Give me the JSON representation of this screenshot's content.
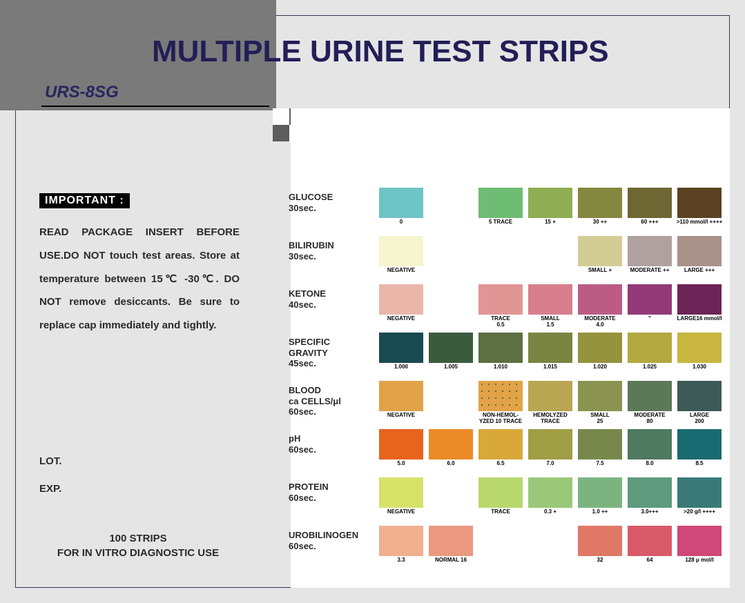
{
  "title": "MULTIPLE URINE TEST STRIPS",
  "model": "URS-8SG",
  "important_label": "IMPORTANT :",
  "important_text": "READ PACKAGE INSERT BEFORE USE.DO NOT touch test areas. Store at temperature between 15℃ -30℃. DO NOT remove desiccants. Be sure to replace cap immediately and tightly.",
  "lot_label": "LOT.",
  "exp_label": "EXP.",
  "strips_qty": "100 STRIPS",
  "strips_use": "FOR IN VITRO DIAGNOSTIC USE",
  "rows": [
    {
      "name": "GLUCOSE",
      "time": "30sec.",
      "cells": [
        {
          "color": "#6fc4c8",
          "label": "0"
        },
        {
          "color": "",
          "label": ""
        },
        {
          "color": "#6fbd74",
          "label": "5 TRACE"
        },
        {
          "color": "#8fae53",
          "label": "15 +"
        },
        {
          "color": "#84873e",
          "label": "30 ++"
        },
        {
          "color": "#6f6733",
          "label": "60 +++"
        },
        {
          "color": "#5a4222",
          "label": ">110 mmol/l ++++"
        }
      ]
    },
    {
      "name": "BILIRUBIN",
      "time": "30sec.",
      "cells": [
        {
          "color": "#f5f4ce",
          "label": "NEGATIVE"
        },
        {
          "color": "",
          "label": ""
        },
        {
          "color": "",
          "label": ""
        },
        {
          "color": "",
          "label": ""
        },
        {
          "color": "#d4cc95",
          "label": "SMALL +"
        },
        {
          "color": "#b0a0a0",
          "label": "MODERATE ++"
        },
        {
          "color": "#a8928a",
          "label": "LARGE +++"
        }
      ]
    },
    {
      "name": "KETONE",
      "time": "40sec.",
      "cells": [
        {
          "color": "#eab6aa",
          "label": "NEGATIVE"
        },
        {
          "color": "",
          "label": ""
        },
        {
          "color": "#e29595",
          "label": "TRACE\n0.5"
        },
        {
          "color": "#d87e8c",
          "label": "SMALL\n1.5"
        },
        {
          "color": "#bc5c85",
          "label": "MODERATE\n4.0"
        },
        {
          "color": "#933977",
          "label": "''"
        },
        {
          "color": "#6d2456",
          "label": "LARGE16 mmol/l"
        }
      ]
    },
    {
      "name": "SPECIFIC\nGRAVITY",
      "time": "45sec.",
      "cells": [
        {
          "color": "#1a4a52",
          "label": "1.000"
        },
        {
          "color": "#3a5c3c",
          "label": "1.005"
        },
        {
          "color": "#5c7042",
          "label": "1.010"
        },
        {
          "color": "#788440",
          "label": "1.015"
        },
        {
          "color": "#94923c",
          "label": "1.020"
        },
        {
          "color": "#b2a940",
          "label": "1.025"
        },
        {
          "color": "#c8b640",
          "label": "1.030"
        }
      ]
    },
    {
      "name": "BLOOD\nca CELLS/μl",
      "time": "60sec.",
      "cells": [
        {
          "color": "#e2a248",
          "label": "NEGATIVE"
        },
        {
          "color": "",
          "label": ""
        },
        {
          "color": "#e2a248",
          "label": "NON-HEMOL-\nYZED 10 TRACE",
          "dotted": true
        },
        {
          "color": "#b8a650",
          "label": "HEMOLYZED\nTRACE"
        },
        {
          "color": "#8a9450",
          "label": "SMALL\n25"
        },
        {
          "color": "#5c7858",
          "label": "MODERATE\n80"
        },
        {
          "color": "#3e5a56",
          "label": "LARGE\n200"
        }
      ]
    },
    {
      "name": "pH",
      "time": "60sec.",
      "cells": [
        {
          "color": "#e8641e",
          "label": "5.0"
        },
        {
          "color": "#eb8a28",
          "label": "6.0"
        },
        {
          "color": "#d8a838",
          "label": "6.5"
        },
        {
          "color": "#a09e44",
          "label": "7.0"
        },
        {
          "color": "#78884c",
          "label": "7.5"
        },
        {
          "color": "#4e7a60",
          "label": "8.0"
        },
        {
          "color": "#1a6a72",
          "label": "8.5"
        }
      ]
    },
    {
      "name": "PROTEIN",
      "time": "60sec.",
      "cells": [
        {
          "color": "#d6e268",
          "label": "NEGATIVE"
        },
        {
          "color": "",
          "label": ""
        },
        {
          "color": "#b8d86e",
          "label": "TRACE"
        },
        {
          "color": "#9ac878",
          "label": "0.3 +"
        },
        {
          "color": "#7cb480",
          "label": "1.0 ++"
        },
        {
          "color": "#5e9a7e",
          "label": "3.0+++"
        },
        {
          "color": "#3a7a76",
          "label": ">20 g/l ++++"
        }
      ]
    },
    {
      "name": "UROBILINOGEN",
      "time": "60sec.",
      "cells": [
        {
          "color": "#f0b090",
          "label": "3.3"
        },
        {
          "color": "#ea9880",
          "label": "NORMAL    16"
        },
        {
          "color": "",
          "label": ""
        },
        {
          "color": "",
          "label": ""
        },
        {
          "color": "#e07868",
          "label": "32"
        },
        {
          "color": "#d85a68",
          "label": "64"
        },
        {
          "color": "#d04878",
          "label": "128 μ mol/l"
        }
      ]
    }
  ]
}
